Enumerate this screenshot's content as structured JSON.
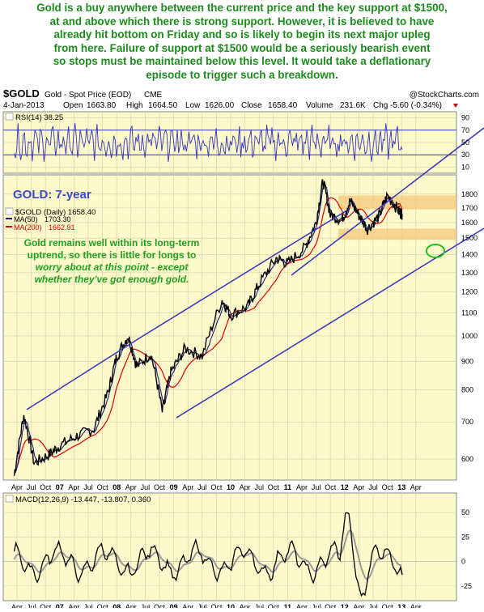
{
  "headline": [
    "Gold is a buy anywhere between the current price and the key support at $1500,",
    "at and above which there is strong support. However, it is believed to have",
    "already hit bottom on Friday and so is likely to begin its next major upleg",
    "from here. Failure of support at $1500 would be a seriously bearish event",
    "so stops must be maintained below this level. It would take a deflationary",
    "episode to trigger such a breakdown."
  ],
  "header": {
    "symbol": "$GOLD",
    "description": "Gold - Spot Price (EOD)",
    "exchange": "CME",
    "brand": "@StockCharts.com",
    "date": "4-Jan-2013",
    "open_label": "Open",
    "open": "1663.80",
    "high_label": "High",
    "high": "1664.50",
    "low_label": "Low",
    "low": "1626.00",
    "close_label": "Close",
    "close": "1658.40",
    "volume_label": "Volume",
    "volume": "231.6K",
    "chg_label": "Chg",
    "chg": "-5.60 (-0.34%)"
  },
  "colors": {
    "panel_bg": "#fdf9cb",
    "grid": "#cfcfa8",
    "trendline": "#3333bb",
    "rsi_line": "#3333bb",
    "ma50": "#1a1a80",
    "ma200": "#dd0000",
    "price": "#000000",
    "support_band": "#f6c87a",
    "annotation_green": "#22a022",
    "title_blue": "#3a4bc2",
    "macd_line": "#000000",
    "macd_signal": "#999999"
  },
  "chart_data": [
    {
      "type": "line",
      "title": "RSI(14) 38.25",
      "series": [
        {
          "name": "RSI(14)",
          "last": 38.25
        }
      ],
      "ylim": [
        0,
        100
      ],
      "yticks": [
        10,
        30,
        50,
        70,
        90
      ],
      "reference_lines": [
        30,
        70
      ]
    },
    {
      "type": "line",
      "title": "$GOLD (Daily) 1658.40",
      "annotation_title": "GOLD: 7-year",
      "annotation_text": [
        "Gold remains well within its long-term",
        "uptrend, so there is little for longs to",
        "worry about at this point - except",
        "whether they've got enough gold."
      ],
      "log_scale": true,
      "ylim": [
        550,
        1950
      ],
      "yticks": [
        600,
        700,
        800,
        900,
        1000,
        1100,
        1200,
        1300,
        1400,
        1500,
        1600,
        1700,
        1800
      ],
      "x_tick_labels": [
        "Apr",
        "Jul",
        "Oct",
        "07",
        "Apr",
        "Jul",
        "Oct",
        "08",
        "Apr",
        "Jul",
        "Oct",
        "09",
        "Apr",
        "Jul",
        "Oct",
        "10",
        "Apr",
        "Jul",
        "Oct",
        "11",
        "Apr",
        "Jul",
        "Oct",
        "12",
        "Apr",
        "Jul",
        "Oct",
        "13",
        "Apr"
      ],
      "legend": [
        {
          "name": "MA(50)",
          "value": "1703.30"
        },
        {
          "name": "MA(200)",
          "value": "1662.91"
        }
      ],
      "series": [
        {
          "name": "$GOLD (Daily)",
          "x": [
            2006.2,
            2006.37,
            2006.55,
            2006.8,
            2007.0,
            2007.3,
            2007.6,
            2007.85,
            2008.0,
            2008.2,
            2008.35,
            2008.6,
            2008.8,
            2008.95,
            2009.2,
            2009.5,
            2009.85,
            2010.0,
            2010.3,
            2010.5,
            2010.8,
            2011.0,
            2011.3,
            2011.5,
            2011.62,
            2011.75,
            2011.95,
            2012.1,
            2012.25,
            2012.4,
            2012.6,
            2012.75,
            2012.95,
            2013.01
          ],
          "values": [
            560,
            720,
            590,
            610,
            635,
            660,
            680,
            790,
            920,
            1000,
            880,
            930,
            730,
            860,
            950,
            920,
            1160,
            1090,
            1130,
            1240,
            1380,
            1350,
            1440,
            1600,
            1900,
            1650,
            1620,
            1750,
            1650,
            1560,
            1640,
            1790,
            1680,
            1658
          ]
        },
        {
          "name": "MA(50)",
          "last": 1703.3
        },
        {
          "name": "MA(200)",
          "last": 1662.91
        }
      ],
      "support_bands": [
        [
          1690,
          1790
        ],
        [
          1490,
          1560
        ]
      ]
    },
    {
      "type": "line",
      "title": "MACD(12,26,9) -13.447, -13.807, 0.360",
      "ylim": [
        -40,
        70
      ],
      "yticks": [
        -25,
        0,
        25,
        50
      ],
      "series": [
        {
          "name": "MACD(12,26,9)",
          "last": -13.447
        },
        {
          "name": "signal",
          "last": -13.807
        },
        {
          "name": "histogram",
          "last": 0.36
        }
      ]
    }
  ]
}
